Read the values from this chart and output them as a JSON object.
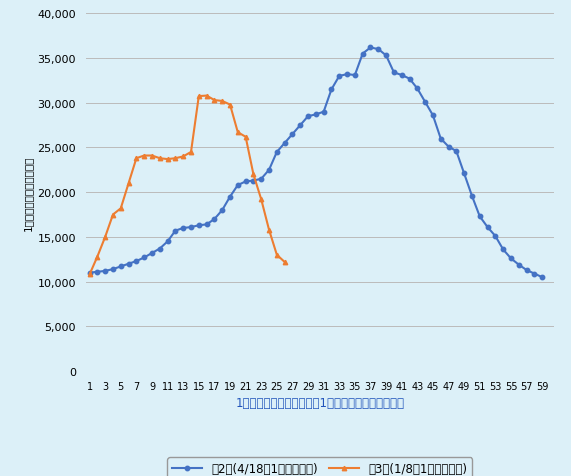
{
  "wave2_x": [
    1,
    2,
    3,
    4,
    5,
    6,
    7,
    8,
    9,
    10,
    11,
    12,
    13,
    14,
    15,
    16,
    17,
    18,
    19,
    20,
    21,
    22,
    23,
    24,
    25,
    26,
    27,
    28,
    29,
    30,
    31,
    32,
    33,
    34,
    35,
    36,
    37,
    38,
    39,
    40,
    41,
    42,
    43,
    44,
    45,
    46,
    47,
    48,
    49,
    50,
    51,
    52,
    53,
    54,
    55,
    56,
    57,
    58,
    59
  ],
  "wave2_y": [
    11000,
    11100,
    11200,
    11400,
    11700,
    12000,
    12300,
    12700,
    13200,
    13700,
    14500,
    15700,
    16000,
    16100,
    16300,
    16400,
    17000,
    18000,
    19500,
    20800,
    21200,
    21300,
    21500,
    22500,
    24500,
    25500,
    26500,
    27500,
    28500,
    28700,
    29000,
    31500,
    33000,
    33200,
    33100,
    35500,
    36184,
    36000,
    35300,
    33400,
    33100,
    32700,
    31600,
    30100,
    28600,
    26000,
    25100,
    24600,
    22100,
    19600,
    17300,
    16100,
    15100,
    13600,
    12600,
    11900,
    11300,
    10900,
    10500
  ],
  "wave3_x": [
    1,
    2,
    3,
    4,
    5,
    6,
    7,
    8,
    9,
    10,
    11,
    12,
    13,
    14,
    15,
    16,
    17,
    18,
    19,
    20,
    21,
    22,
    23,
    24,
    25,
    26
  ],
  "wave3_y": [
    10800,
    12800,
    15000,
    17500,
    18200,
    21000,
    23800,
    24100,
    24100,
    23800,
    23700,
    23800,
    24000,
    24500,
    30744,
    30800,
    30300,
    30200,
    29800,
    26700,
    26200,
    22000,
    19200,
    15800,
    13000,
    12200
  ],
  "ylabel_parts": [
    "新規感染者数"
  ],
  "ylabel_full": "1日当たりの新規感染者数",
  "xlabel": "1日当たり新規感染者数が1万人を超えてからの日数",
  "legend_wave2": "第2波(4/18を1日目とする)",
  "legend_wave3": "第3波(1/8を1日目とする)",
  "wave2_color": "#4472C4",
  "wave3_color": "#ED7D31",
  "bg_color": "#DCF0F8",
  "ylim": [
    0,
    40000
  ],
  "yticks": [
    0,
    5000,
    10000,
    15000,
    20000,
    25000,
    30000,
    35000,
    40000
  ],
  "xtick_labels": [
    "1",
    "3",
    "5",
    "7",
    "9",
    "11",
    "13",
    "15",
    "17",
    "19",
    "21",
    "23",
    "25",
    "27",
    "29",
    "31",
    "33",
    "35",
    "37",
    "39",
    "41",
    "43",
    "45",
    "47",
    "49",
    "51",
    "53",
    "55",
    "57",
    "59"
  ],
  "xtick_positions": [
    1,
    3,
    5,
    7,
    9,
    11,
    13,
    15,
    17,
    19,
    21,
    23,
    25,
    27,
    29,
    31,
    33,
    35,
    37,
    39,
    41,
    43,
    45,
    47,
    49,
    51,
    53,
    55,
    57,
    59
  ]
}
